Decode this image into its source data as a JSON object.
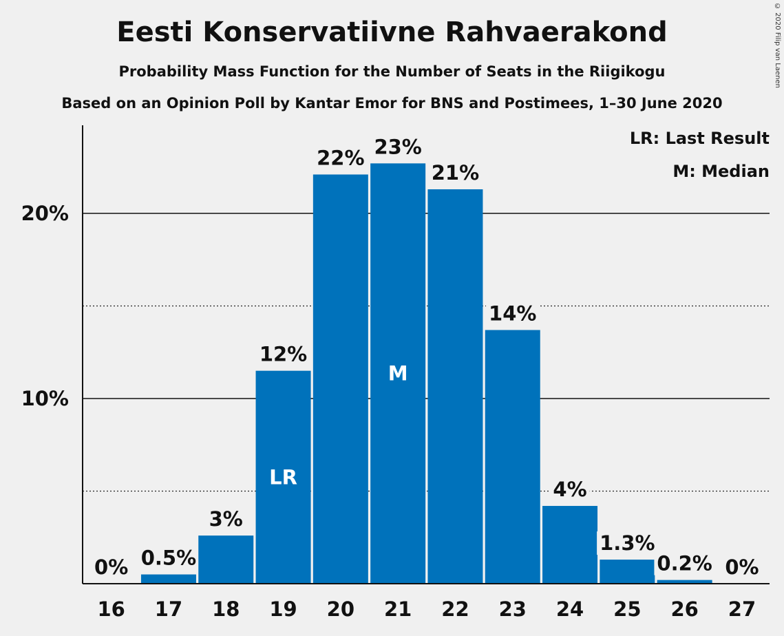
{
  "header": {
    "title": "Eesti Konservatiivne Rahvaerakond",
    "subtitle": "Probability Mass Function for the Number of Seats in the Riigikogu",
    "subtitle2": "Based on an Opinion Poll by Kantar Emor for BNS and Postimees, 1–30 June 2020",
    "copyright": "© 2020 Filip van Laenen"
  },
  "legend": {
    "last_result": "LR: Last Result",
    "median": "M: Median"
  },
  "colors": {
    "bar": "#0072bb",
    "background": "#f0f0f0"
  },
  "chart_data": {
    "type": "bar",
    "categories": [
      "16",
      "17",
      "18",
      "19",
      "20",
      "21",
      "22",
      "23",
      "24",
      "25",
      "26",
      "27"
    ],
    "values": [
      0,
      0.5,
      2.6,
      11.5,
      22.1,
      22.7,
      21.3,
      13.7,
      4.2,
      1.3,
      0.2,
      0
    ],
    "labels": [
      "0%",
      "0.5%",
      "3%",
      "12%",
      "22%",
      "23%",
      "21%",
      "14%",
      "4%",
      "1.3%",
      "0.2%",
      "0%"
    ],
    "bar_annotations": {
      "19": "LR",
      "21": "M"
    },
    "y_ticks": [
      {
        "value": 10,
        "label": "10%"
      },
      {
        "value": 20,
        "label": "20%"
      }
    ],
    "y_minor_gridlines": [
      5,
      15
    ],
    "ylim": [
      0,
      25
    ],
    "grid": true,
    "legend_position": "top-right"
  }
}
